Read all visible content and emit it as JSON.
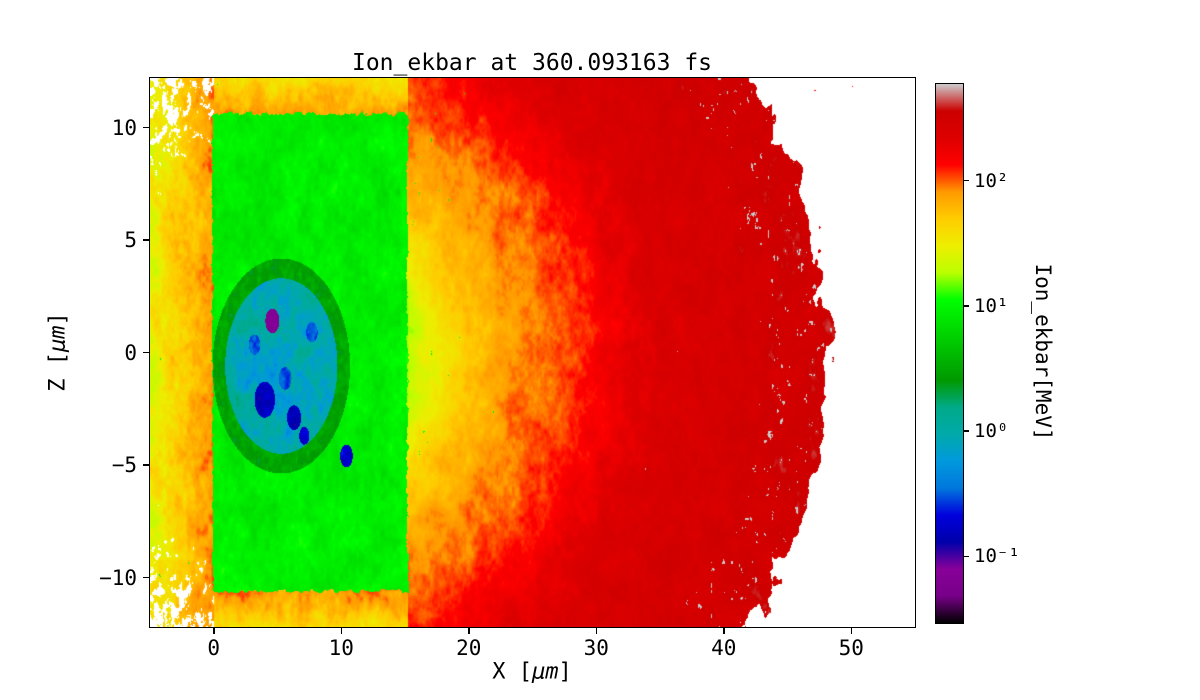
{
  "chart_data": {
    "type": "heatmap",
    "title": "Ion_ekbar at 360.093163 fs",
    "time_fs": 360.093163,
    "xlabel": "X [μm]",
    "xlabel_parts": {
      "pre": "X [",
      "mu": "μm",
      "post": "]"
    },
    "ylabel": "Z [μm]",
    "ylabel_parts": {
      "pre": "Z [",
      "mu": "μm",
      "post": "]"
    },
    "colorbar_label": "Ion_ekbar[MeV]",
    "x_range": [
      -5,
      55
    ],
    "z_range": [
      -12.2,
      12.2
    ],
    "x_ticks": [
      0,
      10,
      20,
      30,
      40,
      50
    ],
    "x_tick_labels": [
      "0",
      "10",
      "20",
      "30",
      "40",
      "50"
    ],
    "z_ticks": [
      -10,
      -5,
      0,
      5,
      10
    ],
    "z_tick_labels": [
      "−10",
      "−5",
      "0",
      "5",
      "10"
    ],
    "grid": false,
    "legend": "none",
    "color_scale": "log",
    "clim_mev": [
      0.03,
      600
    ],
    "colorbar_ticks": [
      {
        "value": 0.1,
        "label": "10⁻¹"
      },
      {
        "value": 1,
        "label": "10⁰"
      },
      {
        "value": 10,
        "label": "10¹"
      },
      {
        "value": 100,
        "label": "10²"
      }
    ],
    "colormap": {
      "name": "nipy_spectral",
      "stops": [
        {
          "pos": 0.0,
          "color": "#000000"
        },
        {
          "pos": 0.05,
          "color": "#770088"
        },
        {
          "pos": 0.1,
          "color": "#880099"
        },
        {
          "pos": 0.15,
          "color": "#0000aa"
        },
        {
          "pos": 0.2,
          "color": "#0000dd"
        },
        {
          "pos": 0.25,
          "color": "#0077dd"
        },
        {
          "pos": 0.3,
          "color": "#0099dd"
        },
        {
          "pos": 0.35,
          "color": "#00aaaa"
        },
        {
          "pos": 0.4,
          "color": "#00aa88"
        },
        {
          "pos": 0.45,
          "color": "#009900"
        },
        {
          "pos": 0.5,
          "color": "#00bb00"
        },
        {
          "pos": 0.55,
          "color": "#00dd00"
        },
        {
          "pos": 0.6,
          "color": "#00ff00"
        },
        {
          "pos": 0.65,
          "color": "#bbff00"
        },
        {
          "pos": 0.7,
          "color": "#eeee00"
        },
        {
          "pos": 0.75,
          "color": "#ffcc00"
        },
        {
          "pos": 0.8,
          "color": "#ff9900"
        },
        {
          "pos": 0.85,
          "color": "#ff0000"
        },
        {
          "pos": 0.9,
          "color": "#dd0000"
        },
        {
          "pos": 0.95,
          "color": "#cc0000"
        },
        {
          "pos": 1.0,
          "color": "#cccccc"
        }
      ]
    },
    "coarse_grid": {
      "note": "approximate Ion_ekbar values in MeV read from the colors; null = no data (white)",
      "x_um": [
        -5,
        0,
        5,
        10,
        15,
        20,
        25,
        30,
        35,
        40,
        45,
        50,
        55
      ],
      "z_um": [
        12,
        8,
        4,
        0,
        -4,
        -8,
        -12
      ],
      "ion_ekbar_mev": [
        [
          25,
          60,
          60,
          55,
          55,
          75,
          110,
          170,
          240,
          280,
          null,
          null,
          null
        ],
        [
          30,
          10,
          9,
          9,
          11,
          55,
          95,
          150,
          240,
          290,
          320,
          null,
          null
        ],
        [
          40,
          9,
          8,
          9,
          13,
          50,
          90,
          140,
          230,
          280,
          310,
          null,
          null
        ],
        [
          45,
          11,
          0.9,
          5,
          15,
          55,
          95,
          150,
          240,
          280,
          320,
          null,
          null
        ],
        [
          40,
          9,
          1.5,
          8,
          13,
          50,
          90,
          140,
          230,
          280,
          310,
          null,
          null
        ],
        [
          30,
          10,
          9,
          9,
          11,
          55,
          95,
          150,
          240,
          290,
          320,
          null,
          null
        ],
        [
          20,
          55,
          55,
          50,
          50,
          75,
          110,
          170,
          240,
          260,
          null,
          null,
          null
        ]
      ]
    },
    "features": {
      "target_block": {
        "x_um": [
          0,
          15.2
        ],
        "z_um": [
          -10.6,
          10.6
        ],
        "typical_mev": 9
      },
      "cold_core": {
        "center_um": [
          5.3,
          -0.6
        ],
        "radius_um": [
          4.4,
          3.9
        ],
        "typical_mev": 0.9,
        "rim_mev": 3.0
      },
      "cold_spots": [
        {
          "center_um": [
            4.6,
            1.4
          ],
          "r_um": 0.55,
          "mev": 0.07
        },
        {
          "center_um": [
            4.0,
            -2.1
          ],
          "r_um": 0.8,
          "mev": 0.16
        },
        {
          "center_um": [
            6.3,
            -2.9
          ],
          "r_um": 0.55,
          "mev": 0.16
        },
        {
          "center_um": [
            5.6,
            -1.15
          ],
          "r_um": 0.5,
          "mev": 0.3
        },
        {
          "center_um": [
            3.2,
            0.35
          ],
          "r_um": 0.45,
          "mev": 0.3
        },
        {
          "center_um": [
            7.7,
            0.9
          ],
          "r_um": 0.45,
          "mev": 0.3
        },
        {
          "center_um": [
            10.4,
            -4.6
          ],
          "r_um": 0.5,
          "mev": 0.18
        },
        {
          "center_um": [
            7.1,
            -3.7
          ],
          "r_um": 0.4,
          "mev": 0.18
        }
      ],
      "blast_front": {
        "semi_axis_x_um": 48.3,
        "z_aspect": 1.95,
        "front_mev": 320,
        "gray_speckle_mev": 560
      },
      "radial_profile": {
        "e_um": [
          15.2,
          17,
          20,
          24,
          28,
          31,
          35,
          42,
          49
        ],
        "mev": [
          17,
          30,
          55,
          85,
          115,
          160,
          240,
          290,
          330
        ]
      },
      "left_plume": {
        "edge_mev": 85,
        "decay_per_um": 0.22,
        "fleck_mev": 9
      },
      "top_bottom_band": {
        "edge_mev": 85,
        "decay_per_um": 0.5,
        "fleck_mev": 9
      }
    }
  }
}
